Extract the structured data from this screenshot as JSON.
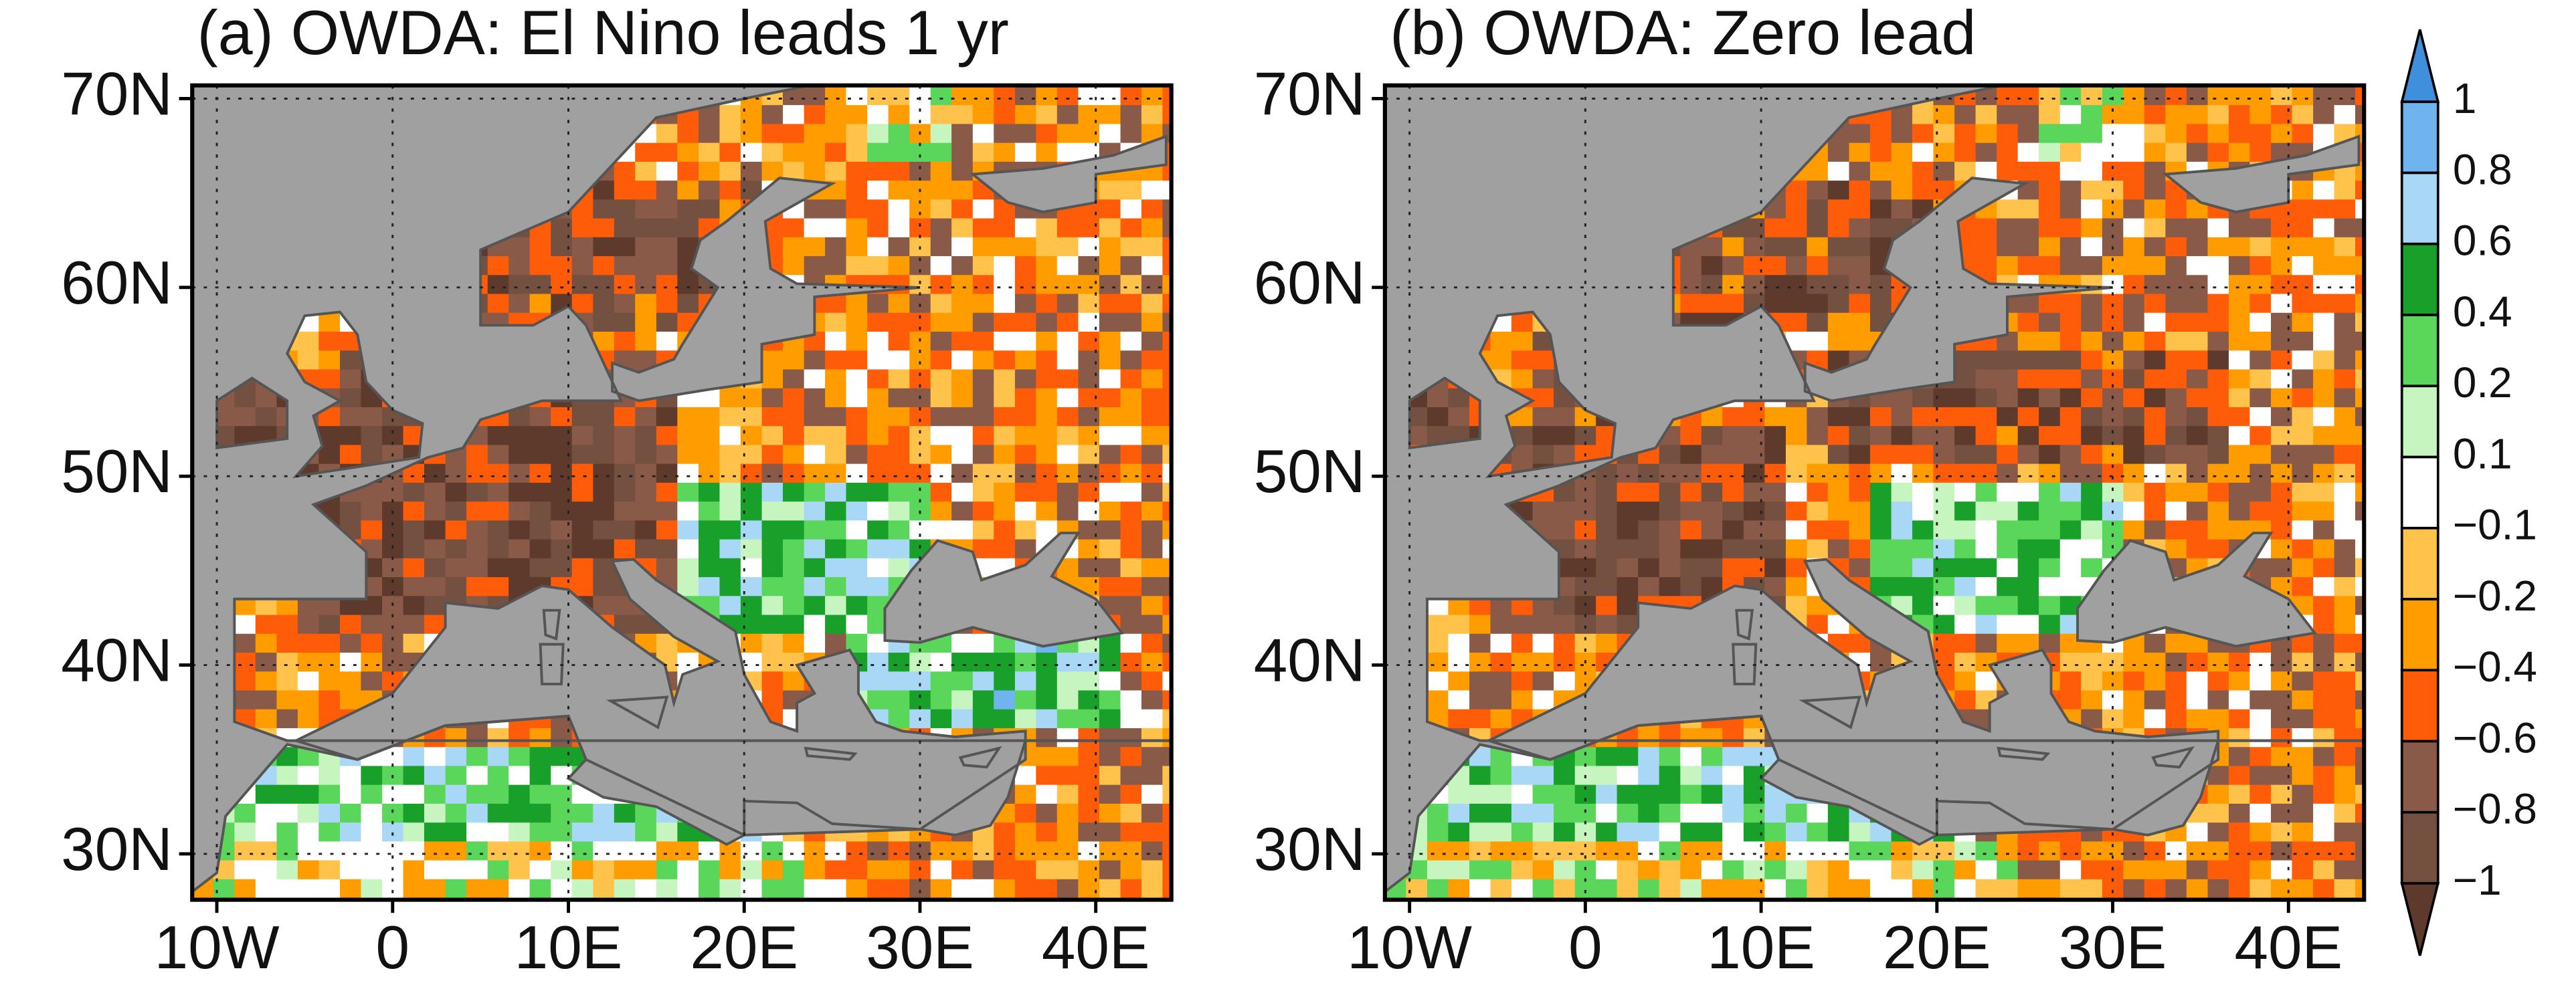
{
  "panels": [
    {
      "title": "(a) OWDA: El Nino leads 1 yr",
      "lat_labels": [
        "70N",
        "60N",
        "50N",
        "40N",
        "30N"
      ],
      "lon_labels": [
        "10W",
        "0",
        "10E",
        "20E",
        "30E",
        "40E"
      ]
    },
    {
      "title": "(b) OWDA: Zero lead",
      "lat_labels": [
        "70N",
        "60N",
        "50N",
        "40N",
        "30N"
      ],
      "lon_labels": [
        "10W",
        "0",
        "10E",
        "20E",
        "30E",
        "40E"
      ]
    }
  ],
  "colorbar": {
    "labels": [
      "1",
      "0.8",
      "0.6",
      "0.4",
      "0.2",
      "0.1",
      "−0.1",
      "−0.2",
      "−0.4",
      "−0.6",
      "−0.8",
      "−1"
    ],
    "colors": [
      "#3f8fdc",
      "#6fb4ee",
      "#a8d8f6",
      "#18a02a",
      "#5ad65a",
      "#c6f5bf",
      "#ffffff",
      "#ffc24a",
      "#ff9c00",
      "#ff5c0a",
      "#8a5a48",
      "#735040",
      "#5e3a2c"
    ]
  }
}
